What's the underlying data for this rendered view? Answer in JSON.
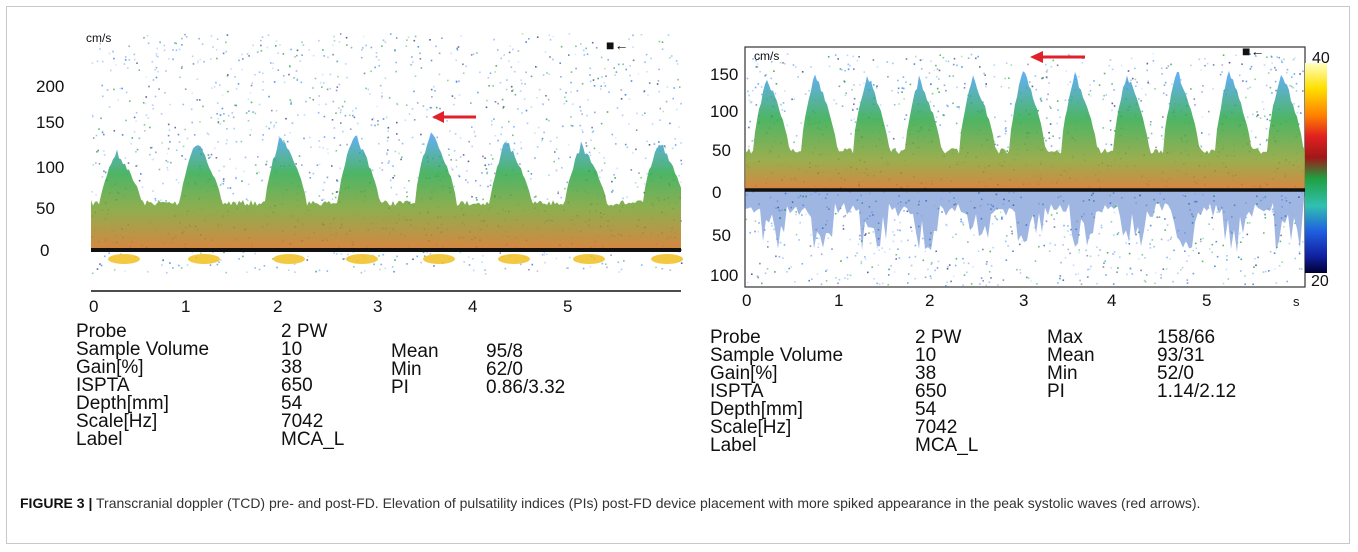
{
  "figure": {
    "label": "FIGURE 3 |",
    "caption": " Transcranial doppler (TCD) pre- and post-FD. Elevation of pulsatility indices (PIs) post-FD device placement with more spiked appearance in the peak systolic waves (red arrows)."
  },
  "colors": {
    "arrow": "#e0202a",
    "baseline": "#111111",
    "colorbar": [
      "#ffffc0",
      "#ffe000",
      "#ff8000",
      "#e02020",
      "#a01818",
      "#20a040",
      "#30c0b0",
      "#2060e0",
      "#1020a0",
      "#000030"
    ]
  },
  "panels": {
    "left": {
      "unit": "cm/s",
      "y_ticks": [
        "200",
        "150",
        "100",
        "50",
        "0"
      ],
      "x_ticks": [
        "0",
        "1",
        "2",
        "3",
        "4",
        "5"
      ],
      "x_unit": "",
      "marker_icon": "■←",
      "params": [
        {
          "label": "Probe",
          "value": "2 PW"
        },
        {
          "label": "Sample Volume",
          "value": "10"
        },
        {
          "label": "Gain[%]",
          "value": "38"
        },
        {
          "label": "ISPTA",
          "value": "650"
        },
        {
          "label": "Depth[mm]",
          "value": "54"
        },
        {
          "label": "Scale[Hz]",
          "value": "7042"
        },
        {
          "label": "Label",
          "value": "MCA_L"
        }
      ],
      "measurements": [
        {
          "label": "Mean",
          "value": "95/8"
        },
        {
          "label": "Min",
          "value": "62/0"
        },
        {
          "label": "PI",
          "value": "0.86/3.32"
        }
      ]
    },
    "right": {
      "unit": "cm/s",
      "y_ticks": [
        "150",
        "100",
        "50",
        "0",
        "50",
        "100"
      ],
      "x_ticks": [
        "0",
        "1",
        "2",
        "3",
        "4",
        "5"
      ],
      "x_unit": "s",
      "marker_icon": "■←",
      "colorbar_top": "40",
      "colorbar_bottom": "20",
      "params": [
        {
          "label": "Probe",
          "value": "2 PW"
        },
        {
          "label": "Sample Volume",
          "value": "10"
        },
        {
          "label": "Gain[%]",
          "value": "38"
        },
        {
          "label": "ISPTA",
          "value": "650"
        },
        {
          "label": "Depth[mm]",
          "value": "54"
        },
        {
          "label": "Scale[Hz]",
          "value": "7042"
        },
        {
          "label": "Label",
          "value": "MCA_L"
        }
      ],
      "measurements": [
        {
          "label": "Max",
          "value": "158/66"
        },
        {
          "label": "Mean",
          "value": "93/31"
        },
        {
          "label": "Min",
          "value": "52/0"
        },
        {
          "label": "PI",
          "value": "1.14/2.12"
        }
      ]
    }
  }
}
